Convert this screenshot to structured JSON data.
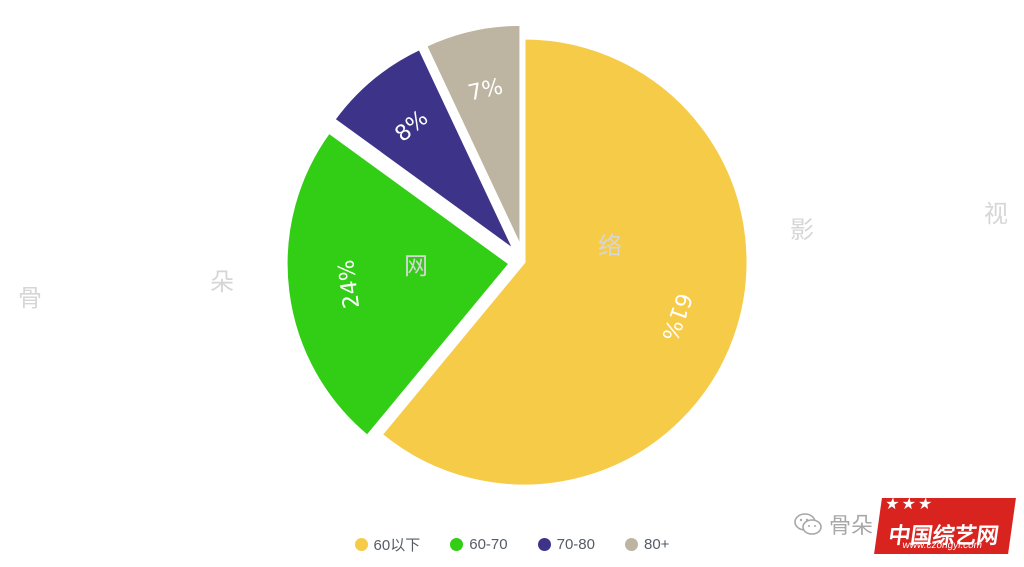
{
  "chart_data": {
    "type": "pie",
    "slices": [
      {
        "name": "60以下",
        "value": 61,
        "label": "61%",
        "color": "#f5cb48"
      },
      {
        "name": "60-70",
        "value": 24,
        "label": "24%",
        "color": "#32cd15"
      },
      {
        "name": "70-80",
        "value": 8,
        "label": "8%",
        "color": "#3d3489"
      },
      {
        "name": "80+",
        "value": 7,
        "label": "7%",
        "color": "#bdb5a2"
      }
    ],
    "legend_position": "bottom"
  },
  "watermarks": [
    "骨",
    "朵",
    "网",
    "络",
    "影",
    "视"
  ],
  "branding": {
    "wechat_text": "骨朵",
    "logo_title": "中国综艺网",
    "logo_url": "www.czongyi.com"
  }
}
